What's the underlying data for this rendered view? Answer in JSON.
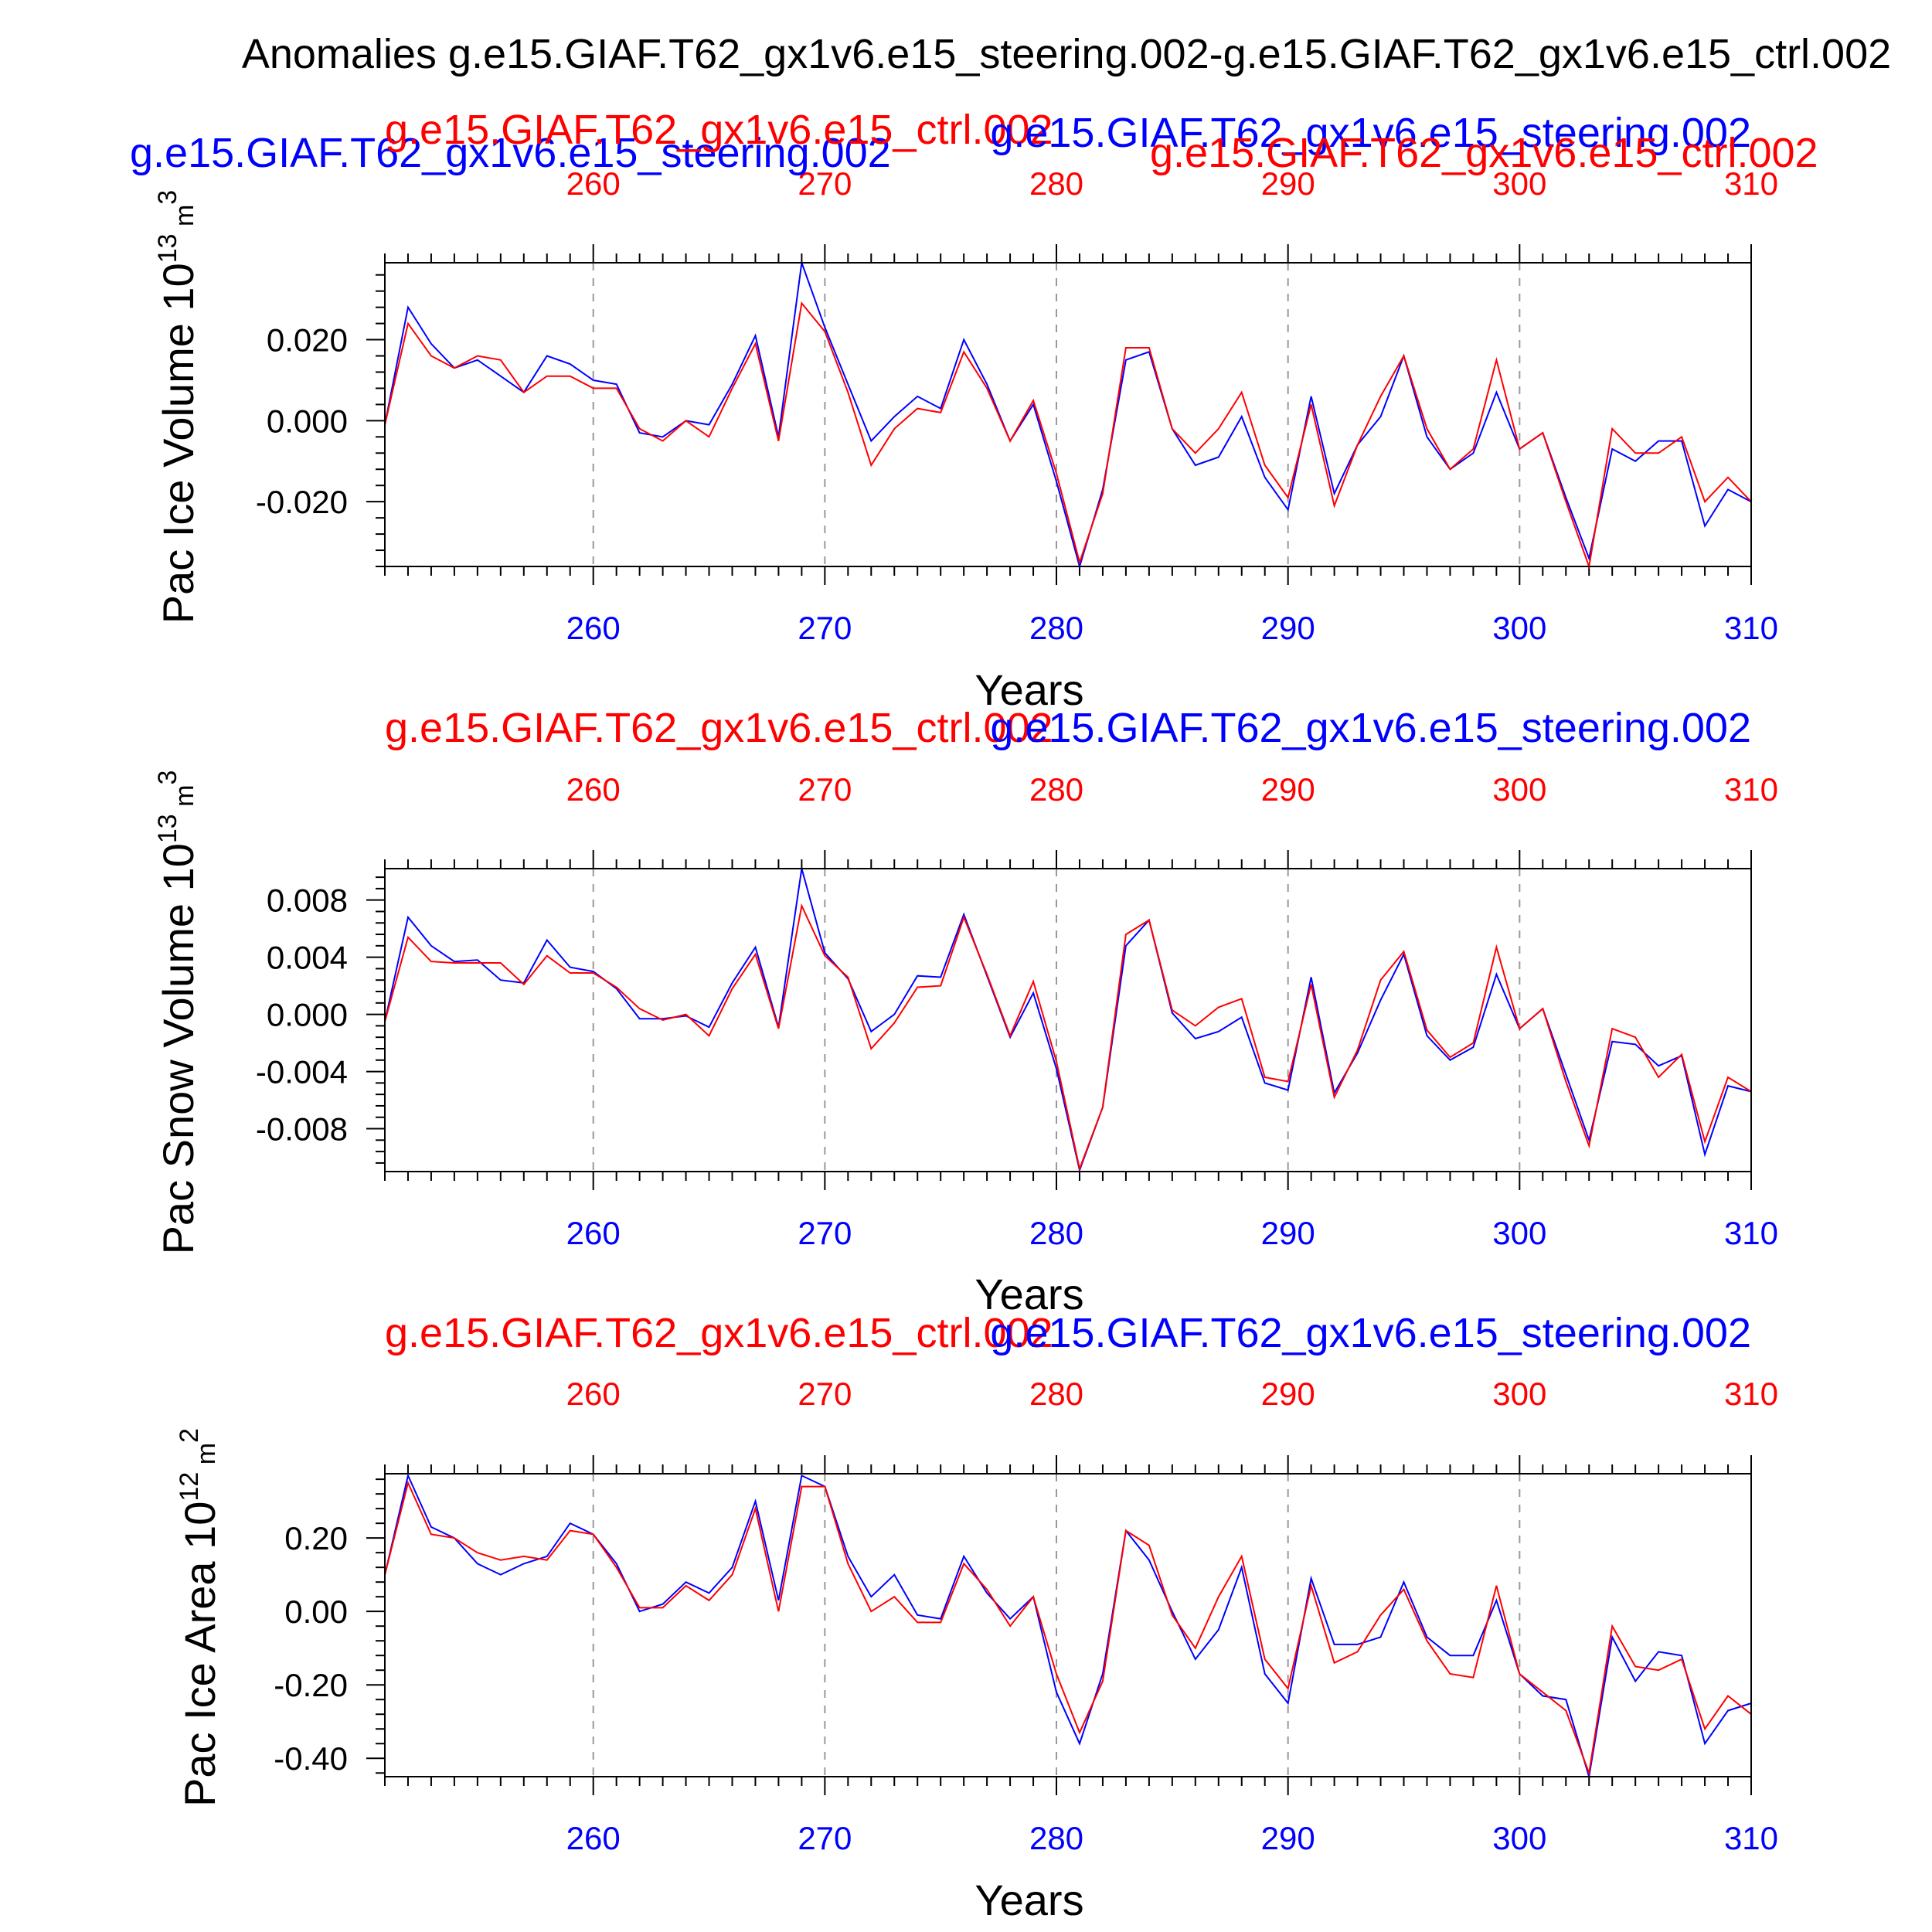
{
  "page_title": "Anomalies g.e15.GIAF.T62_gx1v6.e15_steering.002-g.e15.GIAF.T62_gx1v6.e15_ctrl.002",
  "colors": {
    "case_a": "#0000ff",
    "case_b": "#ff0000",
    "frame": "#000000",
    "grid": "#999999"
  },
  "chart_data": [
    {
      "type": "line",
      "ylabel": "Pac Ice Volume 10",
      "ylabel_exp": "13",
      "ylabel_unit": " m",
      "ylabel_unit_exp": "3",
      "xlabel": "Years",
      "top_title_a": "g.e15.GIAF.T62_gx1v6.e15_steering.002",
      "top_title_b": "g.e15.GIAF.T62_gx1v6.e15_ctrl.002",
      "top_title_a2": "g.e15.GIAF.T62_gx1v6.e15_steering.002",
      "top_title_b2": "g.e15.GIAF.T62_gx1v6.e15_ctrl.002",
      "xlim": [
        251,
        310
      ],
      "ylim": [
        -0.036,
        0.039
      ],
      "x_ticks": [
        260,
        270,
        280,
        290,
        300,
        310
      ],
      "y_ticks": [
        -0.02,
        0.0,
        0.02
      ],
      "y_tick_labels": [
        "-0.020",
        "0.000",
        "0.020"
      ],
      "x_start": 251,
      "series": [
        {
          "name": "g.e15.GIAF.T62_gx1v6.e15_steering.002",
          "color_key": "case_a",
          "values": [
            -0.001,
            0.028,
            0.019,
            0.013,
            0.015,
            0.011,
            0.007,
            0.016,
            0.014,
            0.01,
            0.009,
            -0.003,
            -0.004,
            0.0,
            -0.001,
            0.009,
            0.021,
            -0.004,
            0.039,
            0.023,
            0.009,
            -0.005,
            0.001,
            0.006,
            0.003,
            0.02,
            0.009,
            -0.005,
            0.004,
            -0.015,
            -0.036,
            -0.017,
            0.015,
            0.017,
            -0.002,
            -0.011,
            -0.009,
            0.001,
            -0.014,
            -0.022,
            0.006,
            -0.018,
            -0.006,
            0.001,
            0.016,
            -0.004,
            -0.012,
            -0.008,
            0.007,
            -0.007,
            -0.003,
            -0.019,
            -0.034,
            -0.007,
            -0.01,
            -0.005,
            -0.005,
            -0.026,
            -0.017,
            -0.02
          ]
        },
        {
          "name": "g.e15.GIAF.T62_gx1v6.e15_ctrl.002",
          "color_key": "case_b",
          "values": [
            -0.001,
            0.024,
            0.016,
            0.013,
            0.016,
            0.015,
            0.007,
            0.011,
            0.011,
            0.008,
            0.008,
            -0.002,
            -0.005,
            0.0,
            -0.004,
            0.008,
            0.019,
            -0.005,
            0.029,
            0.022,
            0.007,
            -0.011,
            -0.002,
            0.003,
            0.002,
            0.017,
            0.008,
            -0.005,
            0.005,
            -0.013,
            -0.035,
            -0.018,
            0.018,
            0.018,
            -0.002,
            -0.008,
            -0.002,
            0.007,
            -0.011,
            -0.019,
            0.004,
            -0.021,
            -0.006,
            0.006,
            0.016,
            -0.002,
            -0.012,
            -0.007,
            0.015,
            -0.007,
            -0.003,
            -0.02,
            -0.036,
            -0.002,
            -0.008,
            -0.008,
            -0.004,
            -0.02,
            -0.014,
            -0.02
          ]
        }
      ]
    },
    {
      "type": "line",
      "ylabel": "Pac Snow Volume 10",
      "ylabel_exp": "13",
      "ylabel_unit": " m",
      "ylabel_unit_exp": "3",
      "xlabel": "Years",
      "top_title_a": "g.e15.GIAF.T62_gx1v6.e15_steering.002",
      "top_title_b": "g.e15.GIAF.T62_gx1v6.e15_ctrl.002",
      "xlim": [
        251,
        310
      ],
      "ylim": [
        -0.011,
        0.0102
      ],
      "x_ticks": [
        260,
        270,
        280,
        290,
        300,
        310
      ],
      "y_ticks": [
        -0.008,
        -0.004,
        0.0,
        0.004,
        0.008
      ],
      "y_tick_labels": [
        "-0.008",
        "-0.004",
        "0.000",
        "0.004",
        "0.008"
      ],
      "x_start": 251,
      "series": [
        {
          "name": "g.e15.GIAF.T62_gx1v6.e15_steering.002",
          "color_key": "case_a",
          "values": [
            -0.0005,
            0.0068,
            0.0048,
            0.0037,
            0.0038,
            0.0024,
            0.0022,
            0.0052,
            0.0033,
            0.003,
            0.0018,
            -0.0003,
            -0.0003,
            -0.0001,
            -0.0009,
            0.0022,
            0.0047,
            -0.0009,
            0.0102,
            0.0043,
            0.0025,
            -0.0012,
            0.0,
            0.0027,
            0.0026,
            0.007,
            0.0027,
            -0.0016,
            0.0015,
            -0.0038,
            -0.0109,
            -0.0065,
            0.0048,
            0.0066,
            0.0001,
            -0.0017,
            -0.0012,
            -0.0002,
            -0.0048,
            -0.0053,
            0.0026,
            -0.0055,
            -0.0027,
            0.001,
            0.0042,
            -0.0015,
            -0.0032,
            -0.0023,
            0.0028,
            -0.001,
            0.0004,
            -0.0042,
            -0.0088,
            -0.0019,
            -0.0021,
            -0.0036,
            -0.0029,
            -0.0098,
            -0.005,
            -0.0054
          ]
        },
        {
          "name": "g.e15.GIAF.T62_gx1v6.e15_ctrl.002",
          "color_key": "case_b",
          "values": [
            -0.0005,
            0.0054,
            0.0037,
            0.0036,
            0.0036,
            0.0036,
            0.0021,
            0.0041,
            0.0029,
            0.0029,
            0.0019,
            0.0004,
            -0.0004,
            0.0,
            -0.0015,
            0.0018,
            0.0042,
            -0.001,
            0.0076,
            0.0041,
            0.0026,
            -0.0024,
            -0.0006,
            0.0019,
            0.002,
            0.0068,
            0.0028,
            -0.0015,
            0.0023,
            -0.0033,
            -0.0108,
            -0.0065,
            0.0056,
            0.0066,
            0.0003,
            -0.0008,
            0.0005,
            0.0011,
            -0.0044,
            -0.0047,
            0.0021,
            -0.0058,
            -0.0025,
            0.0024,
            0.0044,
            -0.0011,
            -0.003,
            -0.002,
            0.0047,
            -0.001,
            0.0004,
            -0.0047,
            -0.0092,
            -0.001,
            -0.0016,
            -0.0044,
            -0.0028,
            -0.0089,
            -0.0044,
            -0.0054
          ]
        }
      ]
    },
    {
      "type": "line",
      "ylabel": "Pac Ice Area 10",
      "ylabel_exp": "12",
      "ylabel_unit": " m",
      "ylabel_unit_exp": "2",
      "xlabel": "Years",
      "top_title_a": "g.e15.GIAF.T62_gx1v6.e15_steering.002",
      "top_title_b": "g.e15.GIAF.T62_gx1v6.e15_ctrl.002",
      "xlim": [
        251,
        310
      ],
      "ylim": [
        -0.45,
        0.375
      ],
      "x_ticks": [
        260,
        270,
        280,
        290,
        300,
        310
      ],
      "y_ticks": [
        -0.4,
        -0.2,
        0.0,
        0.2
      ],
      "y_tick_labels": [
        "-0.40",
        "-0.20",
        "0.00",
        "0.20"
      ],
      "x_start": 251,
      "series": [
        {
          "name": "g.e15.GIAF.T62_gx1v6.e15_steering.002",
          "color_key": "case_a",
          "values": [
            0.1,
            0.37,
            0.23,
            0.2,
            0.13,
            0.1,
            0.13,
            0.15,
            0.24,
            0.21,
            0.13,
            0.0,
            0.02,
            0.08,
            0.05,
            0.12,
            0.3,
            0.03,
            0.37,
            0.34,
            0.15,
            0.04,
            0.1,
            -0.01,
            -0.02,
            0.15,
            0.05,
            -0.02,
            0.04,
            -0.22,
            -0.36,
            -0.17,
            0.22,
            0.14,
            0.0,
            -0.13,
            -0.05,
            0.12,
            -0.17,
            -0.25,
            0.09,
            -0.09,
            -0.09,
            -0.07,
            0.08,
            -0.07,
            -0.12,
            -0.12,
            0.03,
            -0.17,
            -0.23,
            -0.24,
            -0.45,
            -0.07,
            -0.19,
            -0.11,
            -0.12,
            -0.36,
            -0.27,
            -0.25
          ]
        },
        {
          "name": "g.e15.GIAF.T62_gx1v6.e15_ctrl.002",
          "color_key": "case_b",
          "values": [
            0.1,
            0.35,
            0.21,
            0.2,
            0.16,
            0.14,
            0.15,
            0.14,
            0.22,
            0.21,
            0.12,
            0.01,
            0.01,
            0.07,
            0.03,
            0.1,
            0.28,
            0.0,
            0.34,
            0.34,
            0.13,
            0.0,
            0.04,
            -0.03,
            -0.03,
            0.13,
            0.06,
            -0.04,
            0.04,
            -0.17,
            -0.33,
            -0.19,
            0.22,
            0.18,
            -0.01,
            -0.1,
            0.04,
            0.15,
            -0.13,
            -0.21,
            0.07,
            -0.14,
            -0.11,
            -0.01,
            0.06,
            -0.08,
            -0.17,
            -0.18,
            0.07,
            -0.17,
            -0.22,
            -0.27,
            -0.44,
            -0.04,
            -0.15,
            -0.16,
            -0.13,
            -0.32,
            -0.23,
            -0.28
          ]
        }
      ]
    }
  ]
}
